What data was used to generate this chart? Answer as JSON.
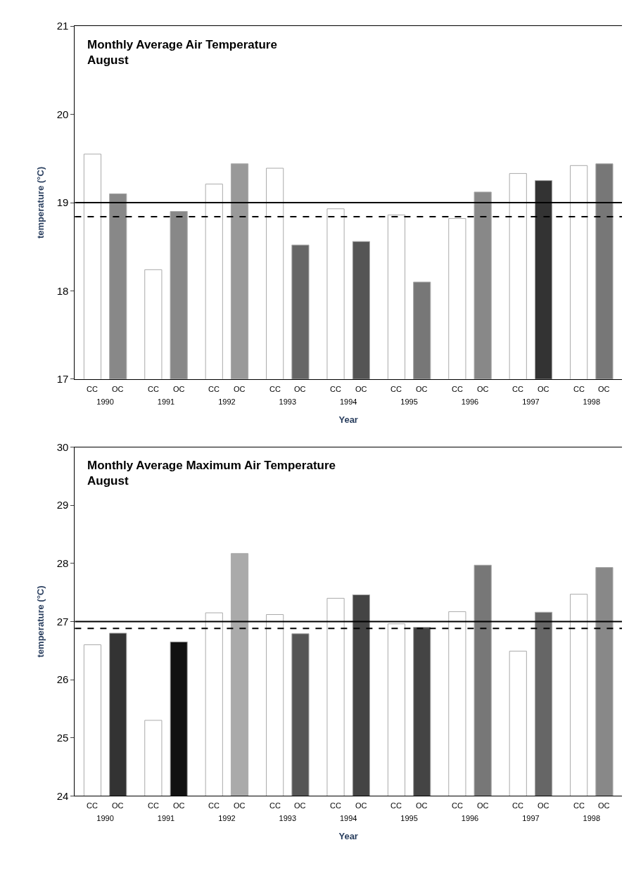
{
  "chart_data": [
    {
      "type": "bar",
      "title": "Monthly Average Air Temperature\nAugust",
      "xlabel": "Year",
      "ylabel": "temperature (°C)",
      "categories": [
        "1990",
        "1991",
        "1992",
        "1993",
        "1994",
        "1995",
        "1996",
        "1997",
        "1998"
      ],
      "series": [
        {
          "name": "CC",
          "color": "#ffffff",
          "values": [
            19.55,
            18.24,
            19.21,
            19.39,
            18.93,
            18.86,
            18.82,
            19.33,
            19.42
          ]
        },
        {
          "name": "OC",
          "colors": [
            "#888888",
            "#888888",
            "#999999",
            "#666666",
            "#555555",
            "#777777",
            "#888888",
            "#333333",
            "#777777"
          ],
          "values": [
            19.1,
            18.9,
            19.44,
            18.52,
            18.56,
            18.1,
            19.12,
            19.25,
            19.44
          ]
        }
      ],
      "ylim": [
        17,
        21
      ],
      "yticks": [
        17,
        18,
        19,
        20,
        21
      ],
      "ref_lines": [
        {
          "axis": "y",
          "value": 19.0,
          "line_style": "solid",
          "color": "#000000"
        },
        {
          "axis": "y",
          "value": 18.84,
          "line_style": "dashed",
          "color": "#000000"
        }
      ]
    },
    {
      "type": "bar",
      "title": "Monthly Average Maximum Air Temperature\nAugust",
      "xlabel": "Year",
      "ylabel": "temperature (°C)",
      "categories": [
        "1990",
        "1991",
        "1992",
        "1993",
        "1994",
        "1995",
        "1996",
        "1997",
        "1998"
      ],
      "series": [
        {
          "name": "CC",
          "color": "#ffffff",
          "values": [
            26.6,
            25.3,
            27.15,
            27.12,
            27.4,
            26.96,
            27.17,
            26.49,
            27.47
          ]
        },
        {
          "name": "OC",
          "colors": [
            "#333333",
            "#111111",
            "#aaaaaa",
            "#555555",
            "#444444",
            "#444444",
            "#777777",
            "#666666",
            "#888888"
          ],
          "values": [
            26.8,
            26.65,
            28.17,
            26.79,
            27.46,
            26.9,
            27.97,
            27.16,
            27.93
          ]
        }
      ],
      "ylim": [
        24,
        30
      ],
      "yticks": [
        24,
        25,
        26,
        27,
        28,
        29,
        30
      ],
      "ref_lines": [
        {
          "axis": "y",
          "value": 27.0,
          "line_style": "solid",
          "color": "#000000"
        },
        {
          "axis": "y",
          "value": 26.88,
          "line_style": "dashed",
          "color": "#000000"
        }
      ]
    }
  ]
}
